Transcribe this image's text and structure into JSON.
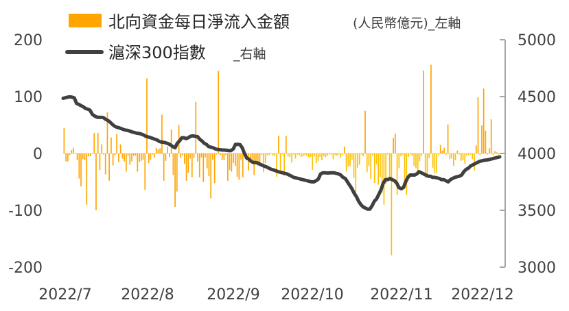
{
  "chart_data": {
    "type": "bar+line",
    "title": "",
    "x_tick_labels": [
      "2022/7",
      "2022/8",
      "2022/9",
      "2022/10",
      "2022/11",
      "2022/12"
    ],
    "left_axis": {
      "ylim": [
        -200,
        200
      ],
      "ticks": [
        -200,
        -100,
        0,
        100,
        200
      ],
      "tick_labels": [
        "-200",
        "-100",
        "0",
        "100",
        "200"
      ]
    },
    "right_axis": {
      "ylim": [
        3000,
        5000
      ],
      "ticks": [
        3000,
        3500,
        4000,
        4500,
        5000
      ],
      "tick_labels": [
        "3000",
        "3500",
        "4000",
        "4500",
        "5000"
      ]
    },
    "legend": {
      "placement": "top",
      "items": [
        {
          "name": "北向資金每日淨流入金額",
          "suffix": " (人民幣億元)_左軸",
          "kind": "bar"
        },
        {
          "name": "滬深300指數",
          "suffix": " _右軸",
          "kind": "line"
        }
      ]
    },
    "colors": {
      "bar_light": "#FFA500",
      "bar_dark": "#FFC000",
      "line": "#404040",
      "axis": "#A6A6A6"
    },
    "series": [
      {
        "name": "北向資金每日淨流入金額",
        "axis": "left",
        "kind": "bar",
        "values": [
          45,
          -14,
          -14,
          -3,
          6,
          10,
          -1,
          -12,
          -44,
          -58,
          -10,
          -12,
          -90,
          -5,
          -5,
          0,
          36,
          -100,
          36,
          -29,
          16,
          -2,
          -37,
          72,
          -48,
          28,
          -21,
          -3,
          34,
          -15,
          16,
          -9,
          -14,
          -32,
          -4,
          -20,
          -14,
          -4,
          -4,
          -32,
          -15,
          -13,
          -11,
          -64,
          132,
          -17,
          -11,
          -2,
          -7,
          10,
          7,
          9,
          68,
          -48,
          -13,
          12,
          -7,
          42,
          -38,
          -94,
          -67,
          50,
          -8,
          -3,
          -18,
          -48,
          -34,
          -9,
          -42,
          -8,
          91,
          -14,
          -42,
          -7,
          -50,
          -7,
          -26,
          -40,
          -79,
          -11,
          -52,
          -2,
          145,
          -3,
          -11,
          -12,
          -3,
          -48,
          -29,
          -32,
          -17,
          -22,
          -41,
          -46,
          -11,
          -42,
          -1,
          -12,
          -30,
          -12,
          -11,
          -38,
          -16,
          -22,
          -21,
          -3,
          -33,
          -17,
          -3,
          -3,
          -1,
          -4,
          -4,
          -41,
          31,
          -35,
          -2,
          -39,
          31,
          -5,
          -6,
          -16,
          -2,
          -9,
          -2,
          -3,
          -6,
          -5,
          -3,
          -4,
          -7,
          -6,
          -29,
          -5,
          -17,
          -13,
          -6,
          -12,
          -5,
          -7,
          -4,
          -2,
          -2,
          -10,
          -3,
          -4,
          -2,
          -7,
          -3,
          12,
          -32,
          -23,
          -22,
          -11,
          -43,
          -70,
          -25,
          -20,
          -2,
          -5,
          75,
          -33,
          -22,
          -45,
          -3,
          -52,
          -19,
          -55,
          -42,
          -69,
          -90,
          -54,
          -2,
          -41,
          -179,
          27,
          35,
          -73,
          -26,
          -5,
          -2,
          -49,
          -73,
          -6,
          -2,
          -4,
          -22,
          -26,
          -38,
          -14,
          -4,
          146,
          -43,
          -40,
          -8,
          156,
          -25,
          -35,
          -34,
          -3,
          15,
          5,
          10,
          -3,
          51,
          -10,
          -9,
          -22,
          -12,
          5,
          -2,
          -13,
          -12,
          -18,
          -4,
          -3,
          -2,
          -10,
          -30,
          14,
          99,
          -3,
          49,
          114,
          40,
          -2,
          9,
          60,
          -3,
          4,
          2,
          -2
        ],
        "color_rule": "light for positive and first half, dark for later negatives"
      },
      {
        "name": "滬深300指數",
        "axis": "right",
        "kind": "line",
        "values": [
          4485,
          4490,
          4495,
          4498,
          4495,
          4488,
          4440,
          4432,
          4420,
          4410,
          4395,
          4390,
          4380,
          4345,
          4330,
          4320,
          4317,
          4318,
          4315,
          4300,
          4290,
          4275,
          4255,
          4240,
          4230,
          4226,
          4218,
          4210,
          4205,
          4202,
          4195,
          4188,
          4183,
          4178,
          4175,
          4169,
          4162,
          4150,
          4145,
          4140,
          4132,
          4125,
          4118,
          4105,
          4100,
          4098,
          4092,
          4085,
          4075,
          4060,
          4050,
          4090,
          4110,
          4138,
          4138,
          4130,
          4140,
          4152,
          4155,
          4150,
          4148,
          4125,
          4110,
          4090,
          4080,
          4060,
          4055,
          4050,
          4040,
          4035,
          4033,
          4030,
          4030,
          4028,
          4025,
          4025,
          4040,
          4080,
          4080,
          4078,
          4050,
          4000,
          3960,
          3950,
          3930,
          3920,
          3920,
          3915,
          3905,
          3895,
          3888,
          3880,
          3870,
          3860,
          3855,
          3848,
          3840,
          3835,
          3830,
          3825,
          3820,
          3810,
          3800,
          3790,
          3785,
          3780,
          3775,
          3770,
          3765,
          3760,
          3755,
          3750,
          3750,
          3760,
          3775,
          3820,
          3830,
          3830,
          3828,
          3829,
          3830,
          3830,
          3825,
          3820,
          3810,
          3790,
          3780,
          3750,
          3720,
          3690,
          3650,
          3620,
          3580,
          3550,
          3530,
          3520,
          3510,
          3510,
          3540,
          3580,
          3600,
          3640,
          3680,
          3740,
          3770,
          3770,
          3780,
          3770,
          3760,
          3740,
          3700,
          3690,
          3700,
          3750,
          3790,
          3810,
          3810,
          3810,
          3820,
          3840,
          3830,
          3820,
          3810,
          3800,
          3800,
          3790,
          3790,
          3785,
          3780,
          3770,
          3770,
          3760,
          3750,
          3770,
          3780,
          3790,
          3795,
          3800,
          3810,
          3840,
          3860,
          3870,
          3890,
          3900,
          3910,
          3920,
          3930,
          3935,
          3940,
          3942,
          3945,
          3950,
          3955,
          3960,
          3965,
          3970
        ]
      }
    ]
  }
}
